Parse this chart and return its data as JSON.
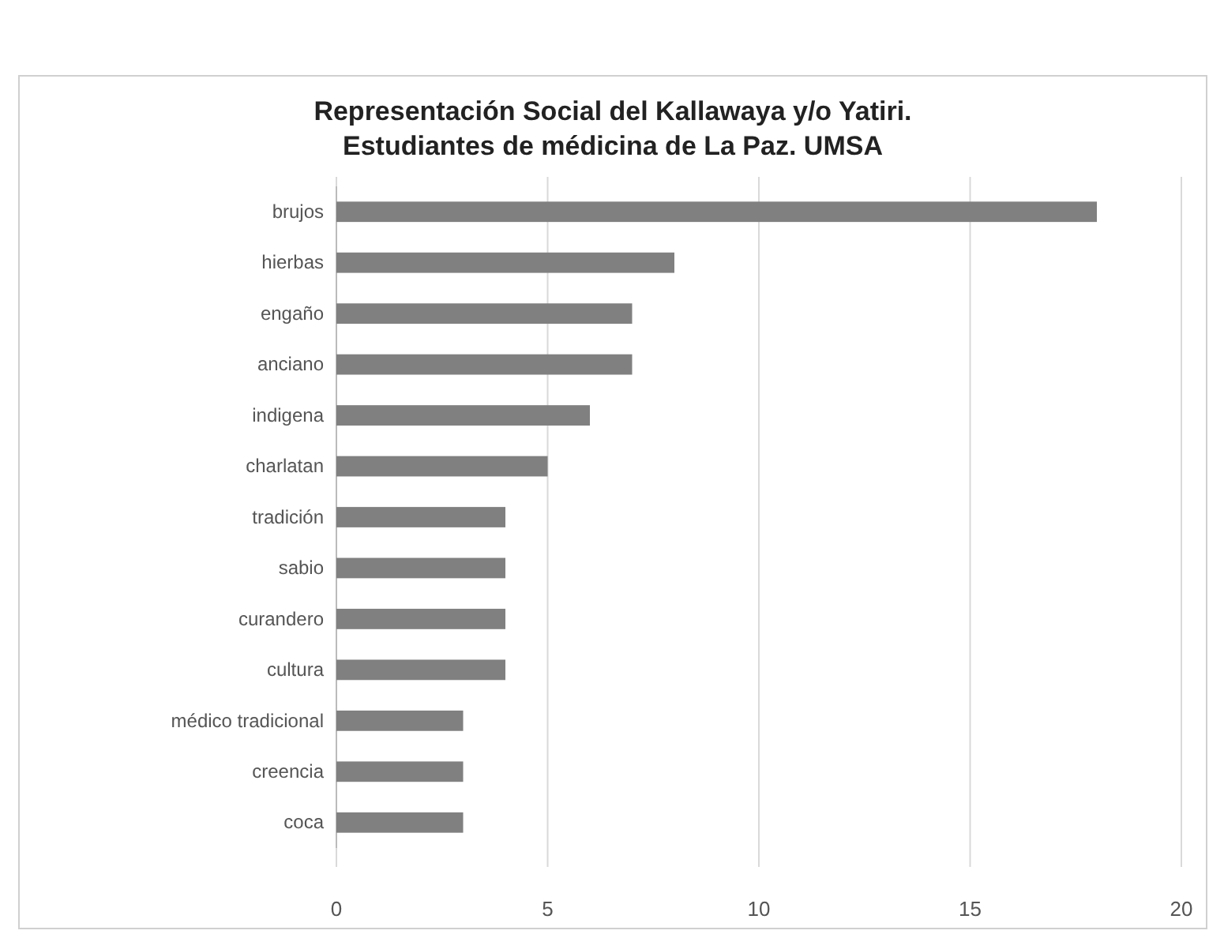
{
  "chart_data": {
    "type": "bar",
    "orientation": "horizontal",
    "title": "Representación Social del Kallawaya y/o Yatiri.\nEstudiantes de médicina de La Paz. UMSA",
    "categories": [
      "brujos",
      "hierbas",
      "engaño",
      "anciano",
      "indigena",
      "charlatan",
      "tradición",
      "sabio",
      "curandero",
      "cultura",
      "médico tradicional",
      "creencia",
      "coca"
    ],
    "values": [
      18,
      8,
      7,
      7,
      6,
      5,
      4,
      4,
      4,
      4,
      3,
      3,
      3
    ],
    "color": "#808080",
    "xlim": [
      0,
      20
    ],
    "xticks": [
      0,
      5,
      10,
      15,
      20
    ],
    "grid": "x"
  }
}
